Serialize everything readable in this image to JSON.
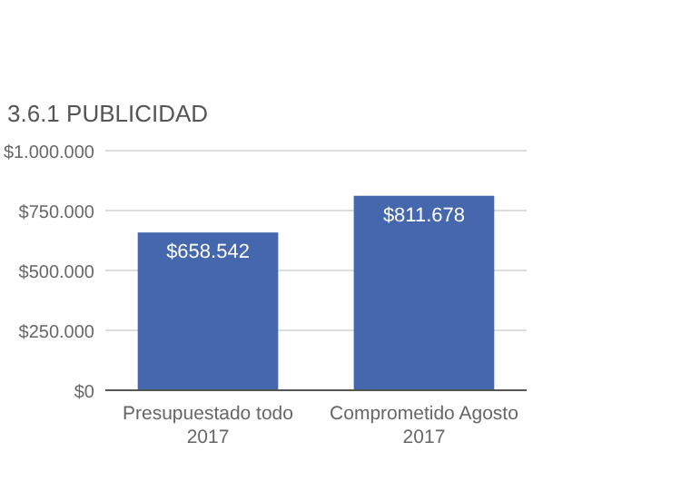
{
  "chart_data": {
    "type": "bar",
    "title": "3.6.1 PUBLICIDAD",
    "categories": [
      "Presupuestado todo 2017",
      "Comprometido Agosto 2017"
    ],
    "values": [
      658542,
      811678
    ],
    "color": "#4467ad",
    "value_labels": [
      "$658.542",
      "$811.678"
    ],
    "ylim": [
      0,
      1000000
    ],
    "yticks": [
      {
        "value": 0,
        "label": "$0"
      },
      {
        "value": 250000,
        "label": "$250.000"
      },
      {
        "value": 500000,
        "label": "$500.000"
      },
      {
        "value": 750000,
        "label": "$750.000"
      },
      {
        "value": 1000000,
        "label": "$1.000.000"
      }
    ],
    "grid": "y"
  }
}
